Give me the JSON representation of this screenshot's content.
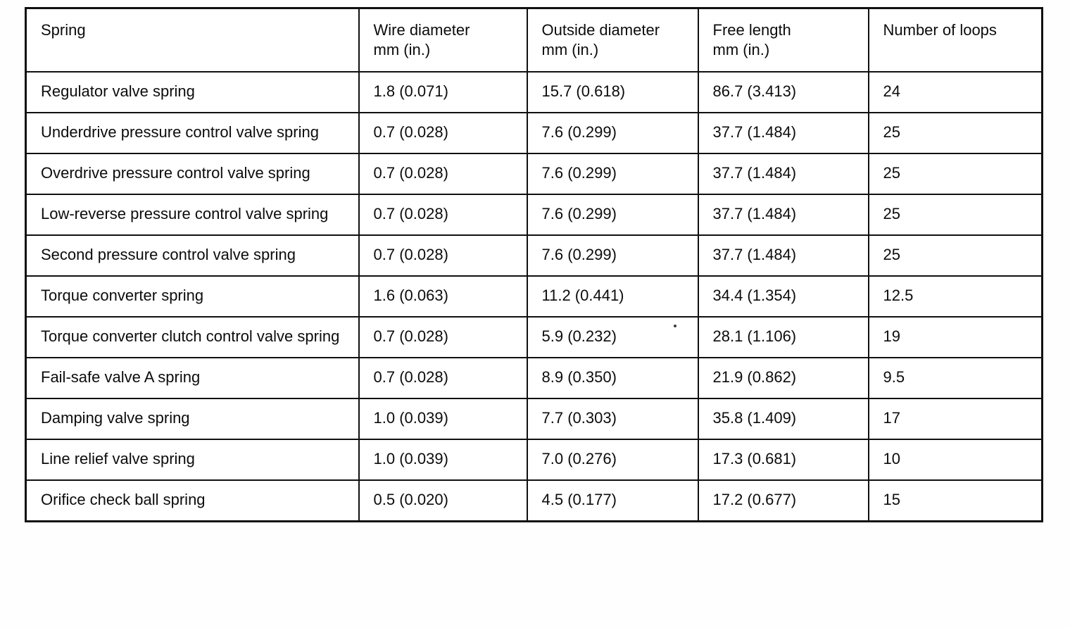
{
  "document": {
    "kind": "scanned-service-manual-table",
    "ink_color": "#0c0c0c",
    "paper_color": "#fefefe"
  },
  "table": {
    "columns": [
      "Spring",
      "Wire diameter\nmm (in.)",
      "Outside diameter\nmm (in.)",
      "Free length\nmm (in.)",
      "Number of loops"
    ],
    "rows": [
      [
        "Regulator valve spring",
        "1.8 (0.071)",
        "15.7 (0.618)",
        "86.7 (3.413)",
        "24"
      ],
      [
        "Underdrive pressure control valve spring",
        "0.7 (0.028)",
        "7.6 (0.299)",
        "37.7 (1.484)",
        "25"
      ],
      [
        "Overdrive pressure control valve spring",
        "0.7 (0.028)",
        "7.6 (0.299)",
        "37.7 (1.484)",
        "25"
      ],
      [
        "Low-reverse pressure control valve spring",
        "0.7 (0.028)",
        "7.6 (0.299)",
        "37.7 (1.484)",
        "25"
      ],
      [
        "Second pressure control valve spring",
        "0.7 (0.028)",
        "7.6 (0.299)",
        "37.7 (1.484)",
        "25"
      ],
      [
        "Torque converter spring",
        "1.6 (0.063)",
        "11.2 (0.441)",
        "34.4 (1.354)",
        "12.5"
      ],
      [
        "Torque converter clutch control valve spring",
        "0.7 (0.028)",
        "5.9 (0.232)",
        "28.1 (1.106)",
        "19"
      ],
      [
        "Fail-safe valve A spring",
        "0.7 (0.028)",
        "8.9 (0.350)",
        "21.9 (0.862)",
        "9.5"
      ],
      [
        "Damping valve spring",
        "1.0 (0.039)",
        "7.7 (0.303)",
        "35.8 (1.409)",
        "17"
      ],
      [
        "Line relief valve spring",
        "1.0 (0.039)",
        "7.0 (0.276)",
        "17.3 (0.681)",
        "10"
      ],
      [
        "Orifice check ball spring",
        "0.5 (0.020)",
        "4.5 (0.177)",
        "17.2 (0.677)",
        "15"
      ]
    ]
  }
}
